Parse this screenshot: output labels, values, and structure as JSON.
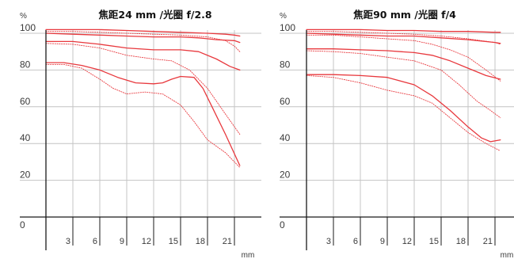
{
  "chart_data": [
    {
      "type": "line",
      "title": "焦距24 mm /光圈 f/2.8",
      "ylabel": "%",
      "xlabel": "mm",
      "ylim": [
        0,
        100
      ],
      "xlim": [
        0,
        21.6
      ],
      "yticks": [
        "0",
        "20",
        "40",
        "60",
        "80",
        "100"
      ],
      "xticks": [
        "3",
        "6",
        "9",
        "12",
        "15",
        "18",
        "21"
      ],
      "grid": true,
      "series": [
        {
          "style": "solid",
          "x": [
            0,
            3,
            6,
            9,
            12,
            15,
            18,
            20,
            21,
            21.6
          ],
          "y": [
            102,
            102,
            102,
            101.5,
            101,
            100.5,
            100,
            99.5,
            99,
            98.5
          ]
        },
        {
          "style": "dotted",
          "x": [
            0,
            3,
            6,
            9,
            12,
            15,
            18,
            20,
            21,
            21.6
          ],
          "y": [
            101,
            101,
            100.5,
            100,
            99.5,
            99,
            98,
            96,
            93,
            90
          ]
        },
        {
          "style": "solid",
          "x": [
            0,
            3,
            6,
            9,
            12,
            15,
            17,
            19,
            21,
            21.6
          ],
          "y": [
            100,
            99.5,
            99,
            98.5,
            98,
            98,
            97.5,
            96.5,
            96,
            95
          ]
        },
        {
          "style": "solid",
          "x": [
            0,
            3,
            6,
            9,
            12,
            15,
            17,
            19,
            20.5,
            21.6
          ],
          "y": [
            95.5,
            95.5,
            94,
            92,
            91,
            91,
            90,
            86,
            82,
            80
          ]
        },
        {
          "style": "dotted",
          "x": [
            0,
            3,
            6,
            9,
            12,
            14,
            16,
            18,
            20,
            21.6
          ],
          "y": [
            94.5,
            94,
            92,
            88,
            86,
            85,
            80,
            70,
            56,
            45
          ]
        },
        {
          "style": "solid",
          "x": [
            0,
            2,
            4,
            6,
            8,
            10,
            12,
            13,
            14,
            15,
            16.5,
            17.5,
            18.5,
            20,
            21.6
          ],
          "y": [
            84,
            84,
            82.5,
            80,
            76,
            73,
            72.5,
            73,
            75,
            76.5,
            76,
            70,
            60,
            45,
            28
          ]
        },
        {
          "style": "dotted",
          "x": [
            0,
            2,
            4,
            6,
            7.5,
            9,
            11,
            13,
            15,
            16.5,
            18,
            20,
            21.6
          ],
          "y": [
            83,
            83,
            81,
            75,
            70,
            67,
            68,
            67,
            61,
            52,
            42,
            35,
            27
          ]
        }
      ]
    },
    {
      "type": "line",
      "title": "焦距90 mm /光圈 f/4",
      "ylabel": "%",
      "xlabel": "mm",
      "ylim": [
        0,
        100
      ],
      "xlim": [
        0,
        21.6
      ],
      "yticks": [
        "0",
        "20",
        "40",
        "60",
        "80",
        "100"
      ],
      "xticks": [
        "3",
        "6",
        "9",
        "12",
        "15",
        "18",
        "21"
      ],
      "grid": true,
      "series": [
        {
          "style": "solid",
          "x": [
            0,
            3,
            6,
            9,
            12,
            15,
            18,
            21,
            21.6
          ],
          "y": [
            102,
            102,
            102,
            101.5,
            101.5,
            101,
            101,
            100.5,
            100.5
          ]
        },
        {
          "style": "dotted",
          "x": [
            0,
            3,
            6,
            9,
            12,
            15,
            18,
            21,
            21.6
          ],
          "y": [
            101,
            101,
            100.5,
            100,
            99.5,
            98.5,
            97,
            95,
            94
          ]
        },
        {
          "style": "solid",
          "x": [
            0,
            3,
            6,
            9,
            12,
            15,
            18,
            21,
            21.6
          ],
          "y": [
            100,
            99.5,
            99,
            98.5,
            98.5,
            97.5,
            96.5,
            95,
            94.5
          ]
        },
        {
          "style": "dotted",
          "x": [
            0,
            3,
            6,
            9,
            12,
            14,
            16,
            18,
            20,
            21.6
          ],
          "y": [
            99,
            99,
            98,
            97,
            96,
            94,
            91,
            87,
            80,
            74
          ]
        },
        {
          "style": "solid",
          "x": [
            0,
            3,
            6,
            9,
            12,
            14,
            16,
            18,
            20,
            21.6
          ],
          "y": [
            91.5,
            91.5,
            91,
            90.5,
            89.5,
            88,
            85,
            81,
            77,
            75
          ]
        },
        {
          "style": "dotted",
          "x": [
            0,
            3,
            6,
            9,
            12,
            15,
            17,
            19,
            20.5,
            21.6
          ],
          "y": [
            90.5,
            90,
            89,
            87,
            85,
            80,
            72,
            63,
            58,
            54
          ]
        },
        {
          "style": "solid",
          "x": [
            0,
            3,
            6,
            9,
            12,
            14,
            16,
            18,
            19.5,
            20.5,
            21.6
          ],
          "y": [
            77.5,
            77.5,
            77,
            76,
            72,
            66,
            58,
            49,
            43,
            41,
            42
          ]
        },
        {
          "style": "dotted",
          "x": [
            0,
            3,
            6,
            9,
            12,
            14,
            16,
            18,
            20,
            21.6
          ],
          "y": [
            77,
            76,
            73,
            69,
            66,
            62,
            54,
            46,
            40,
            36
          ]
        }
      ]
    }
  ]
}
